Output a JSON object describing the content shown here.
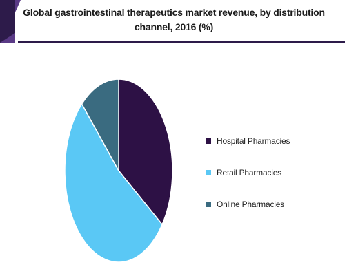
{
  "colors": {
    "header_dark": "#2d1b4a",
    "header_light": "#5a3a86"
  },
  "chart_data": {
    "type": "pie",
    "title": "Global gastrointestinal therapeutics market revenue, by distribution channel, 2016 (%)",
    "categories": [
      "Hospital Pharmacies",
      "Retail Pharmacies",
      "Online Pharmacies"
    ],
    "values": [
      35,
      53,
      12
    ],
    "colors": [
      "#2d1145",
      "#5ac8f5",
      "#3a6b80"
    ],
    "legend_position": "right"
  }
}
